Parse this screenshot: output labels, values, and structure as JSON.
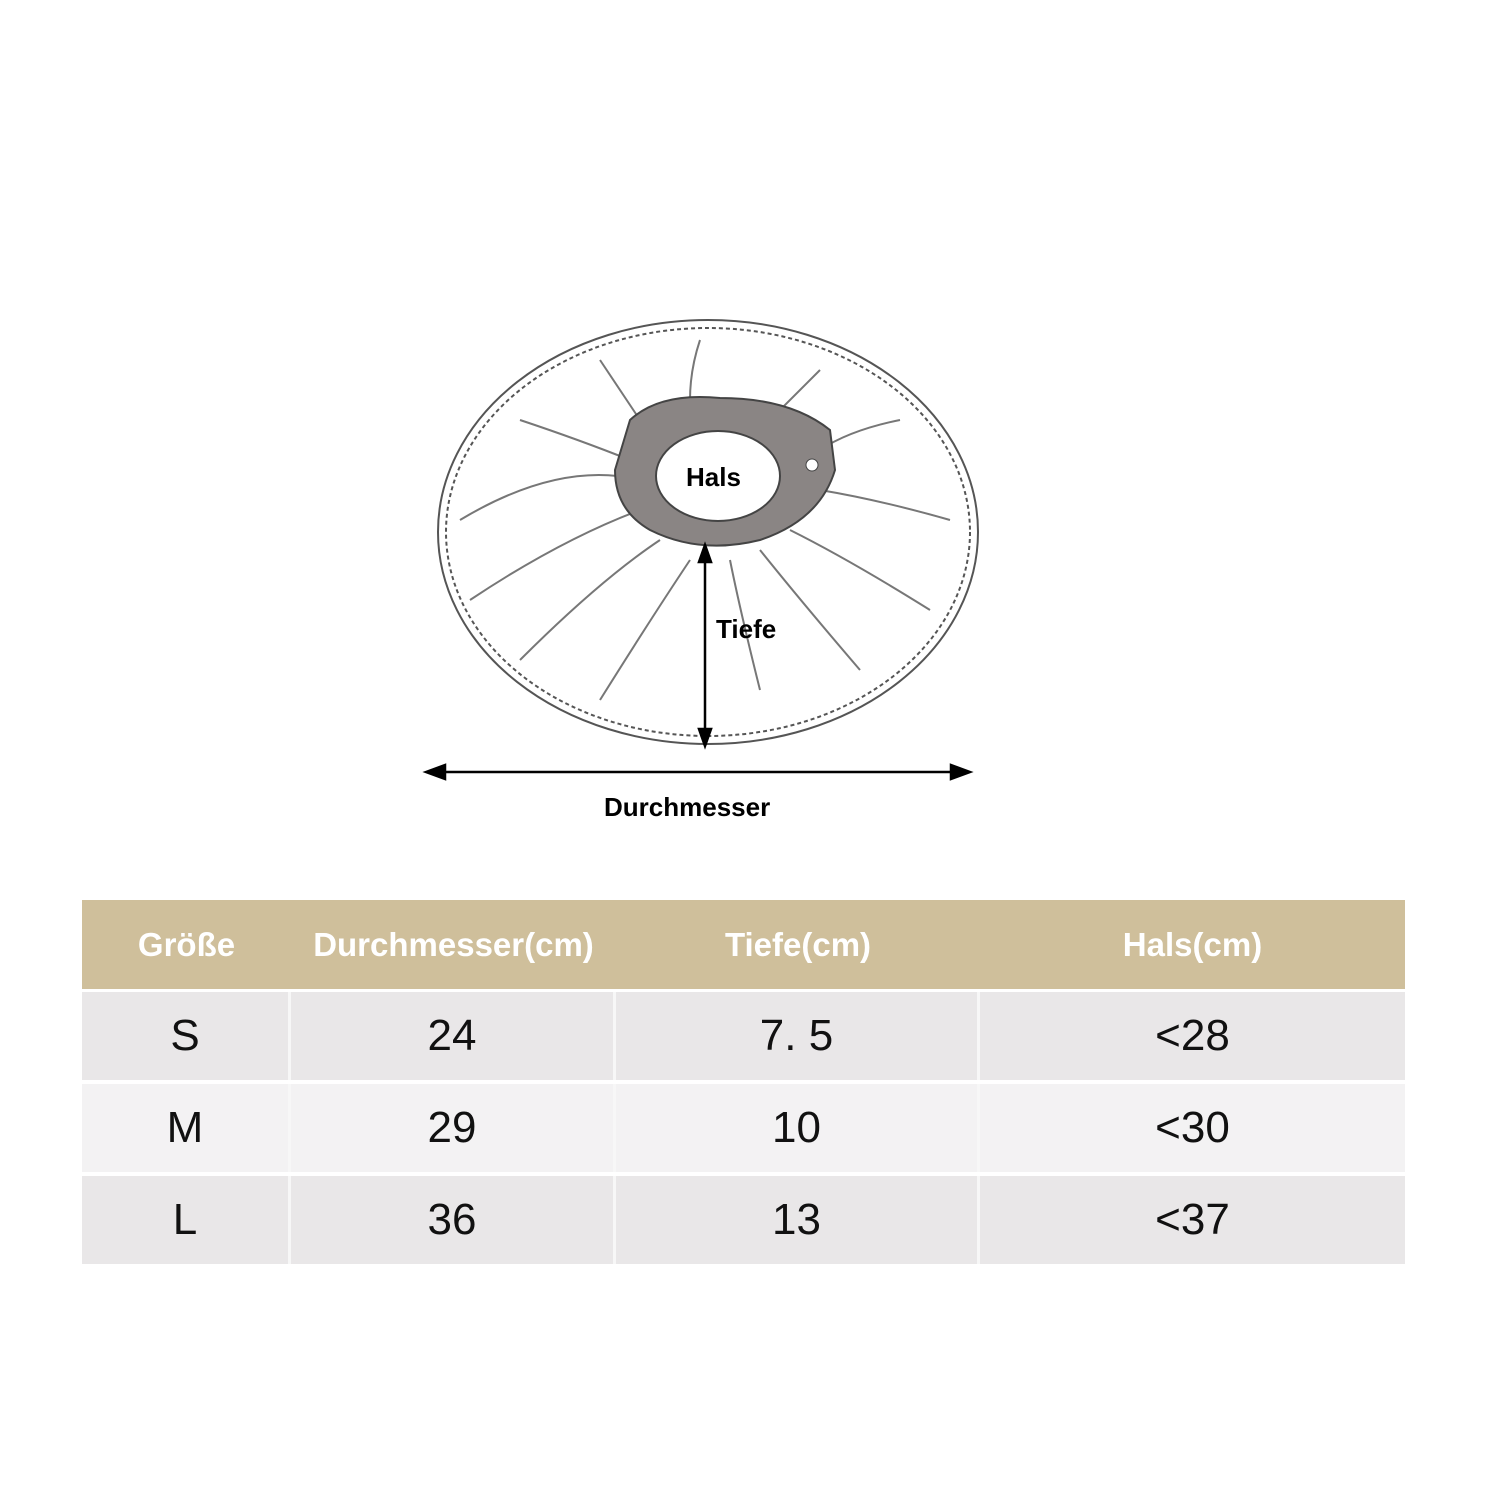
{
  "diagram": {
    "labels": {
      "neck": "Hals",
      "depth": "Tiefe",
      "diameter": "Durchmesser"
    }
  },
  "colors": {
    "header_bg": "#cfbf9b",
    "row_odd": "#e9e7e8",
    "row_even": "#f3f2f3"
  },
  "table": {
    "headers": [
      "Größe",
      "Durchmesser(cm)",
      "Tiefe(cm)",
      "Hals(cm)"
    ],
    "rows": [
      [
        "S",
        "24",
        "7. 5",
        "<28"
      ],
      [
        "M",
        "29",
        "10",
        "<30"
      ],
      [
        "L",
        "36",
        "13",
        "<37"
      ]
    ]
  }
}
